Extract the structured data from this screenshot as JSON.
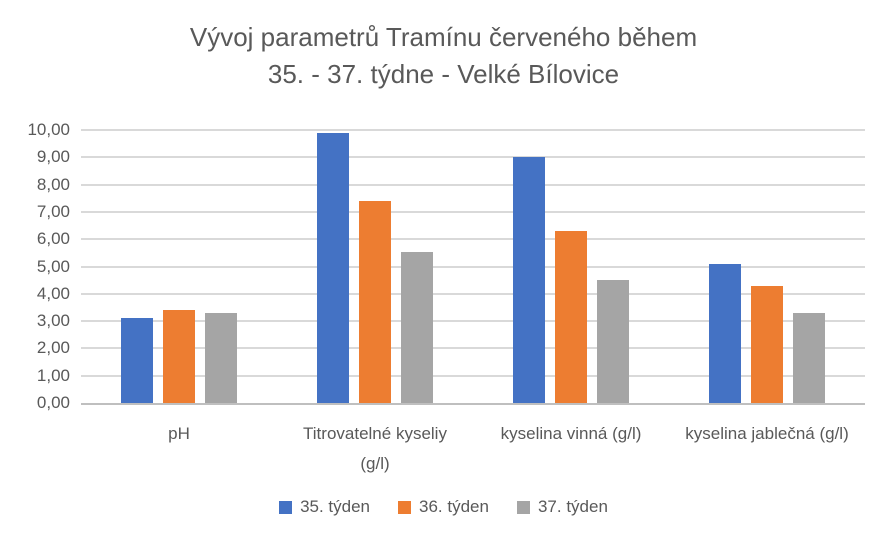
{
  "chart_data": {
    "type": "bar",
    "title": "Vývoj parametrů Tramínu červeného během 35. - 37. týdne - Velké Bílovice",
    "title_lines": [
      "Vývoj parametrů Tramínu červeného během",
      "35. - 37. týdne - Velké Bílovice"
    ],
    "categories": [
      "pH",
      "Titrovatelné kyseliy (g/l)",
      "kyselina vinná (g/l)",
      "kyselina jablečná (g/l)"
    ],
    "series": [
      {
        "name": "35. týden",
        "color": "#4472C4",
        "values": [
          3.1,
          9.9,
          9.0,
          5.1
        ]
      },
      {
        "name": "36. týden",
        "color": "#ED7D31",
        "values": [
          3.4,
          7.4,
          6.3,
          4.3
        ]
      },
      {
        "name": "37. týden",
        "color": "#A5A5A5",
        "values": [
          3.3,
          5.55,
          4.5,
          3.3
        ]
      }
    ],
    "ylim": [
      0,
      10
    ],
    "ytick_step": 1,
    "ytick_labels": [
      "0,00",
      "1,00",
      "2,00",
      "3,00",
      "4,00",
      "5,00",
      "6,00",
      "7,00",
      "8,00",
      "9,00",
      "10,00"
    ],
    "xlabel": "",
    "ylabel": "",
    "grid": true,
    "legend_position": "bottom",
    "colors": {
      "text": "#595959",
      "gridline": "#D9D9D9",
      "axis_line": "#BFBFBF",
      "background": "#FFFFFF"
    }
  }
}
